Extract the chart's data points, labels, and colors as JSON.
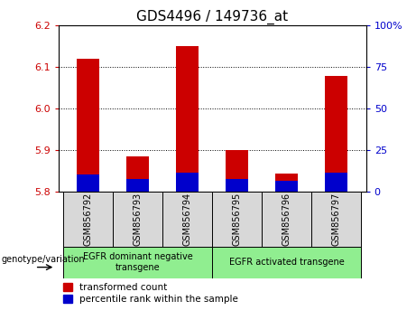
{
  "title": "GDS4496 / 149736_at",
  "samples": [
    "GSM856792",
    "GSM856793",
    "GSM856794",
    "GSM856795",
    "GSM856796",
    "GSM856797"
  ],
  "base": 5.8,
  "red_tops": [
    6.12,
    5.885,
    6.15,
    5.9,
    5.845,
    6.08
  ],
  "blue_tops": [
    5.843,
    5.832,
    5.847,
    5.832,
    5.827,
    5.847
  ],
  "ylim": [
    5.8,
    6.2
  ],
  "yticks_left": [
    5.8,
    5.9,
    6.0,
    6.1,
    6.2
  ],
  "yticks_right": [
    0,
    25,
    50,
    75,
    100
  ],
  "right_ylim": [
    0,
    100
  ],
  "group1_label": "EGFR dominant negative\ntransgene",
  "group2_label": "EGFR activated transgene",
  "group_color": "#90ee90",
  "bar_color_red": "#cc0000",
  "bar_color_blue": "#0000cc",
  "bar_width": 0.45,
  "left_tick_color": "#cc0000",
  "right_tick_color": "#0000cc",
  "title_fontsize": 11,
  "tick_fontsize": 8,
  "legend_red": "transformed count",
  "legend_blue": "percentile rank within the sample",
  "genotype_label": "genotype/variation",
  "sample_bg": "#d8d8d8"
}
